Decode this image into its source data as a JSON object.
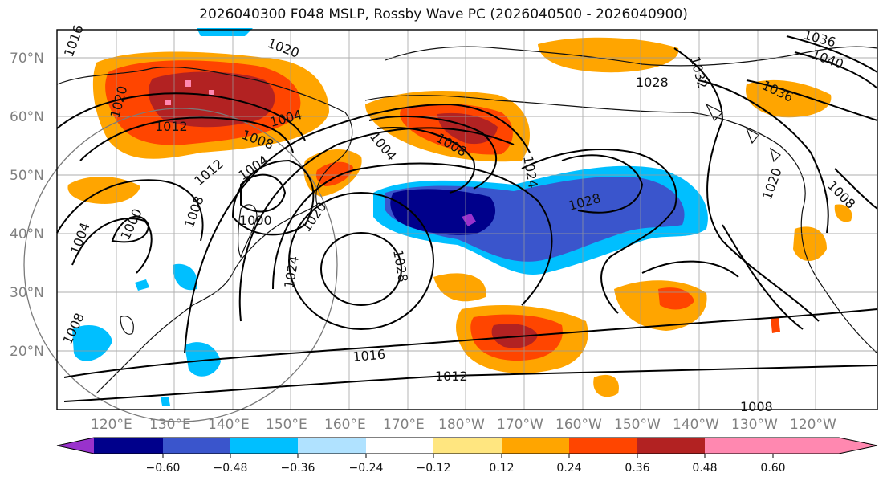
{
  "title": "2026040300 F048 MSLP, Rossby Wave PC (2026040500 - 2026040900)",
  "map": {
    "lat_ticks": [
      "70°N",
      "60°N",
      "50°N",
      "40°N",
      "30°N",
      "20°N"
    ],
    "lon_ticks": [
      "120°E",
      "130°E",
      "140°E",
      "150°E",
      "160°E",
      "170°E",
      "180°W",
      "170°W",
      "160°W",
      "150°W",
      "140°W",
      "130°W",
      "120°W"
    ],
    "isobar_labels": [
      "1016",
      "1020",
      "1036",
      "1040",
      "1032",
      "1028",
      "1020",
      "1012",
      "1008",
      "1004",
      "1008",
      "1004",
      "1036",
      "1008",
      "1024",
      "1004",
      "1000",
      "1000",
      "1008",
      "1004",
      "1020",
      "1028",
      "1024",
      "1028",
      "1020",
      "1016",
      "1012",
      "1008",
      "1008",
      "1012"
    ]
  },
  "colorbar": {
    "ticks": [
      "−0.60",
      "−0.48",
      "−0.36",
      "−0.24",
      "−0.12",
      "0.12",
      "0.24",
      "0.36",
      "0.48",
      "0.60"
    ],
    "colors": [
      "#9932cc",
      "#00008b",
      "#3a55cc",
      "#00bfff",
      "#b0e2ff",
      "#ffffff",
      "#ffe680",
      "#ffa500",
      "#ff4500",
      "#b22222",
      "#ff88b0"
    ]
  }
}
